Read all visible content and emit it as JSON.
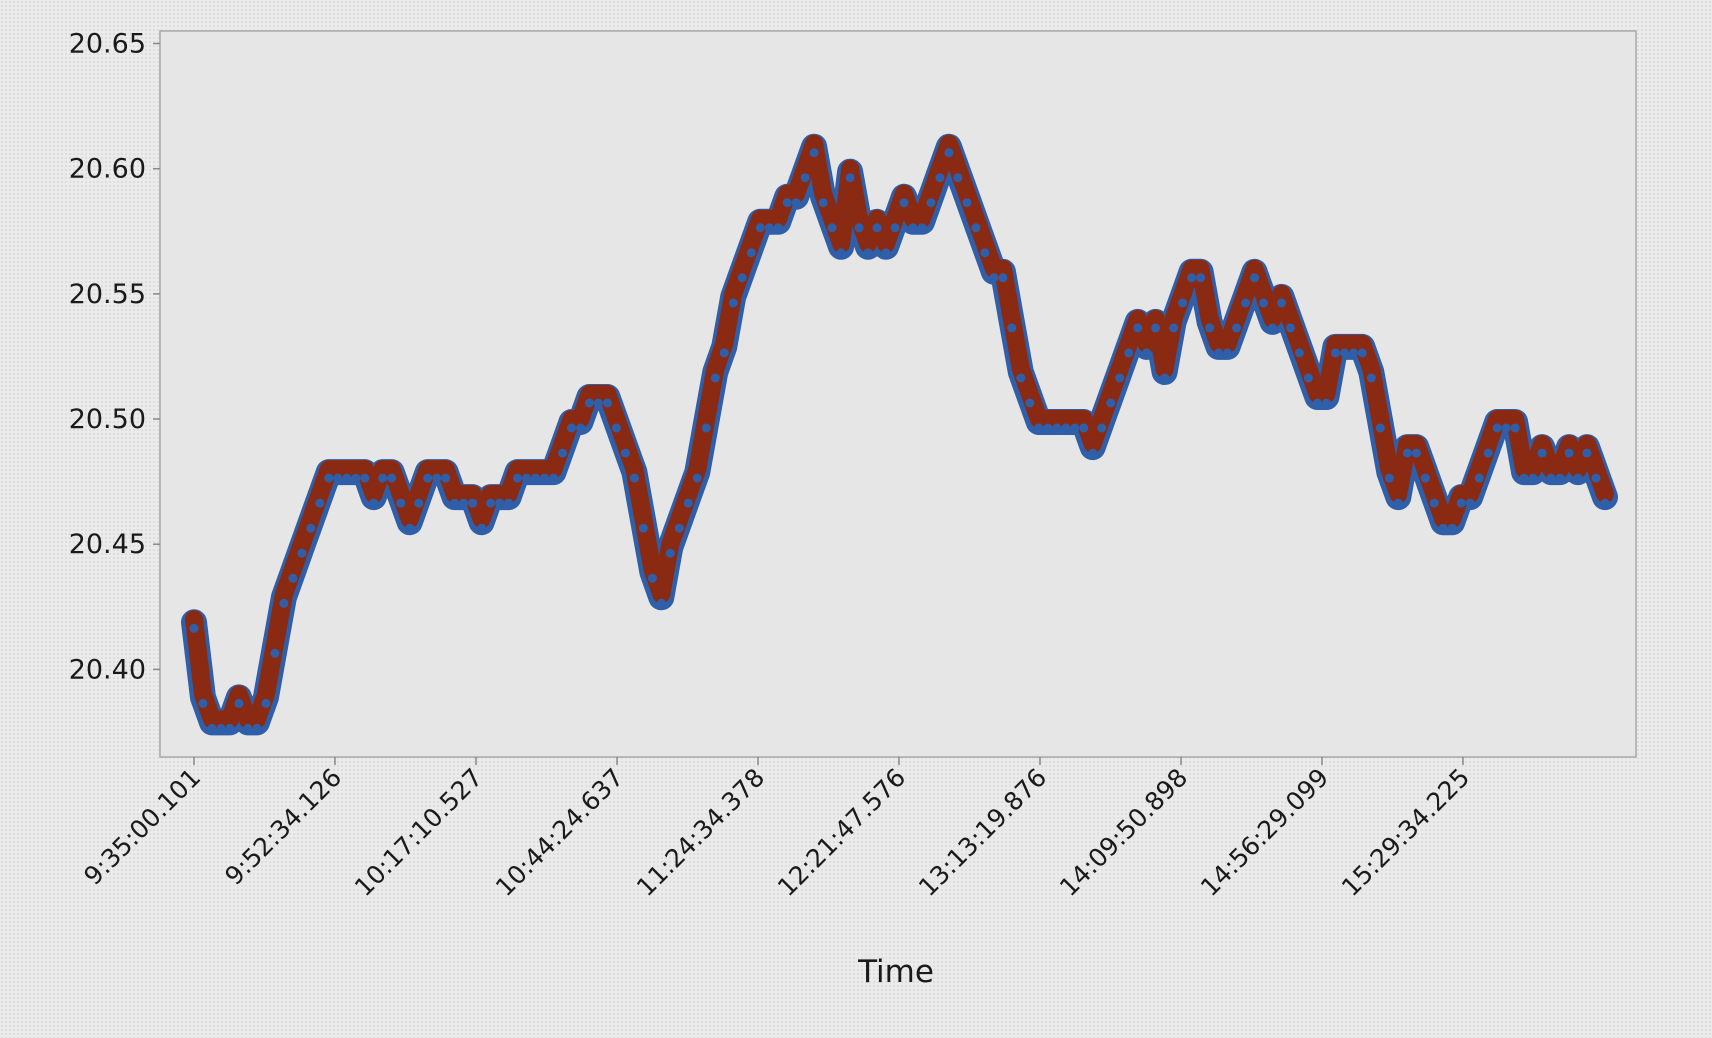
{
  "chart_data": {
    "type": "line",
    "title": "",
    "xlabel": "Time",
    "ylabel": "",
    "ylim": [
      20.365,
      20.655
    ],
    "yticks": [
      "20.40",
      "20.45",
      "20.50",
      "20.55",
      "20.60",
      "20.65"
    ],
    "xtick_labels": [
      "9:35:00.101",
      "9:52:34.126",
      "10:17:10.527",
      "10:44:24.637",
      "11:24:34.378",
      "12:21:47.576",
      "13:13:19.876",
      "14:09:50.898",
      "14:56:29.099",
      "15:29:34.225"
    ],
    "grid": false,
    "legend": "none",
    "colors": {
      "band": "#8b2a12",
      "points": "#2e5fa8",
      "plot_background": "#e6e6e6",
      "frame": "#a8a8a8"
    },
    "series": [
      {
        "values": [
          20.42,
          20.39,
          20.38,
          20.38,
          20.38,
          20.39,
          20.38,
          20.38,
          20.39,
          20.41,
          20.43,
          20.44,
          20.45,
          20.46,
          20.47,
          20.48,
          20.48,
          20.48,
          20.48,
          20.48,
          20.47,
          20.48,
          20.48,
          20.47,
          20.46,
          20.47,
          20.48,
          20.48,
          20.48,
          20.47,
          20.47,
          20.47,
          20.46,
          20.47,
          20.47,
          20.47,
          20.48,
          20.48,
          20.48,
          20.48,
          20.48,
          20.49,
          20.5,
          20.5,
          20.51,
          20.51,
          20.51,
          20.5,
          20.49,
          20.48,
          20.46,
          20.44,
          20.43,
          20.45,
          20.46,
          20.47,
          20.48,
          20.5,
          20.52,
          20.53,
          20.55,
          20.56,
          20.57,
          20.58,
          20.58,
          20.58,
          20.59,
          20.59,
          20.6,
          20.61,
          20.59,
          20.58,
          20.57,
          20.6,
          20.58,
          20.57,
          20.58,
          20.57,
          20.58,
          20.59,
          20.58,
          20.58,
          20.59,
          20.6,
          20.61,
          20.6,
          20.59,
          20.58,
          20.57,
          20.56,
          20.56,
          20.54,
          20.52,
          20.51,
          20.5,
          20.5,
          20.5,
          20.5,
          20.5,
          20.5,
          20.49,
          20.5,
          20.51,
          20.52,
          20.53,
          20.54,
          20.53,
          20.54,
          20.52,
          20.54,
          20.55,
          20.56,
          20.56,
          20.54,
          20.53,
          20.53,
          20.54,
          20.55,
          20.56,
          20.55,
          20.54,
          20.55,
          20.54,
          20.53,
          20.52,
          20.51,
          20.51,
          20.53,
          20.53,
          20.53,
          20.53,
          20.52,
          20.5,
          20.48,
          20.47,
          20.49,
          20.49,
          20.48,
          20.47,
          20.46,
          20.46,
          20.47,
          20.47,
          20.48,
          20.49,
          20.5,
          20.5,
          20.5,
          20.48,
          20.48,
          20.49,
          20.48,
          20.48,
          20.49,
          20.48,
          20.49,
          20.48,
          20.47
        ]
      }
    ]
  }
}
